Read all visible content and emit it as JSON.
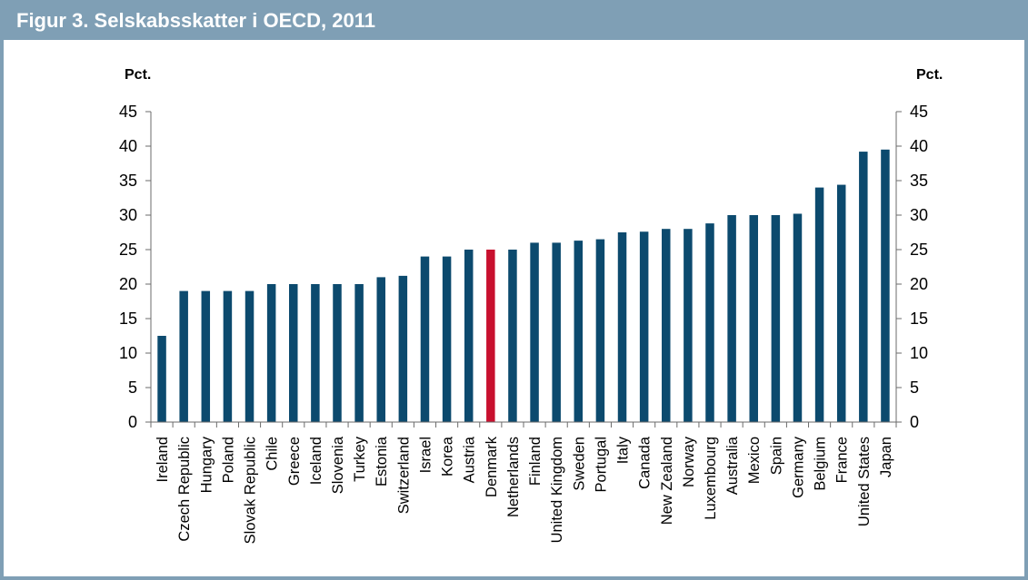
{
  "figure": {
    "title": "Figur 3. Selskabsskatter i OECD, 2011"
  },
  "colors": {
    "header_bg": "#7f9fb5",
    "bar": "#0c4a6e",
    "highlight": "#c8102e",
    "axis": "#6b6b6b"
  },
  "chart_data": {
    "type": "bar",
    "title": "",
    "ylabel_left": "Pct.",
    "ylabel_right": "Pct.",
    "xlabel": "",
    "ylim": [
      0,
      45
    ],
    "yticks": [
      0,
      5,
      10,
      15,
      20,
      25,
      30,
      35,
      40,
      45
    ],
    "grid": false,
    "highlight_category": "Denmark",
    "categories": [
      "Ireland",
      "Czech Republic",
      "Hungary",
      "Poland",
      "Slovak Republic",
      "Chile",
      "Greece",
      "Iceland",
      "Slovenia",
      "Turkey",
      "Estonia",
      "Switzerland",
      "Israel",
      "Korea",
      "Austria",
      "Denmark",
      "Netherlands",
      "Finland",
      "United Kingdom",
      "Sweden",
      "Portugal",
      "Italy",
      "Canada",
      "New Zealand",
      "Norway",
      "Luxembourg",
      "Australia",
      "Mexico",
      "Spain",
      "Germany",
      "Belgium",
      "France",
      "United States",
      "Japan"
    ],
    "values": [
      12.5,
      19,
      19,
      19,
      19,
      20,
      20,
      20,
      20,
      20,
      21,
      21.2,
      24,
      24,
      25,
      25,
      25,
      26,
      26,
      26.3,
      26.5,
      27.5,
      27.6,
      28,
      28,
      28.8,
      30,
      30,
      30,
      30.2,
      34,
      34.4,
      39.2,
      39.5
    ]
  }
}
